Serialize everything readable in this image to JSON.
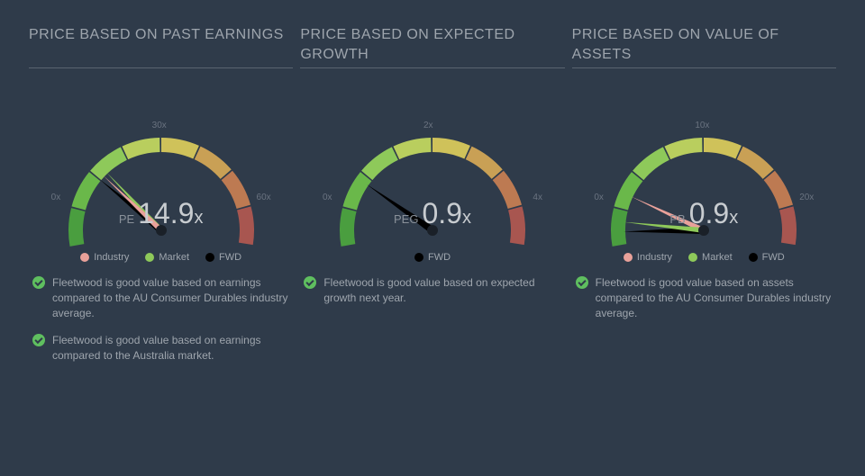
{
  "background_color": "#2f3b4a",
  "panels": [
    {
      "title": "PRICE BASED ON PAST EARNINGS",
      "gauge": {
        "type": "gauge",
        "metric_label": "PE",
        "metric_value": "14.9",
        "metric_suffix": "x",
        "range_min": 0,
        "range_max": 60,
        "tick_min_label": "0x",
        "tick_mid_label": "30x",
        "tick_max_label": "60x",
        "arc_colors": [
          "#4a9e3f",
          "#6ab84a",
          "#8ec95a",
          "#b9ce5e",
          "#cfc25a",
          "#c9a055",
          "#bd7a52",
          "#a85650"
        ],
        "needles": [
          {
            "id": "fwd",
            "value": 14.9,
            "color": "#000000"
          },
          {
            "id": "market",
            "value": 17,
            "color": "#8ec95a"
          },
          {
            "id": "industry",
            "value": 16,
            "color": "#e9a19a"
          }
        ],
        "legend": [
          {
            "label": "Industry",
            "color": "#e9a19a"
          },
          {
            "label": "Market",
            "color": "#8ec95a"
          },
          {
            "label": "FWD",
            "color": "#000000"
          }
        ]
      },
      "checks": [
        "Fleetwood is good value based on earnings compared to the AU Consumer Durables industry average.",
        "Fleetwood is good value based on earnings compared to the Australia market."
      ]
    },
    {
      "title": "PRICE BASED ON EXPECTED GROWTH",
      "gauge": {
        "type": "gauge",
        "metric_label": "PEG",
        "metric_value": "0.9",
        "metric_suffix": "x",
        "range_min": 0,
        "range_max": 4,
        "tick_min_label": "0x",
        "tick_mid_label": "2x",
        "tick_max_label": "4x",
        "arc_colors": [
          "#4a9e3f",
          "#6ab84a",
          "#8ec95a",
          "#b9ce5e",
          "#cfc25a",
          "#c9a055",
          "#bd7a52",
          "#a85650"
        ],
        "needles": [
          {
            "id": "fwd",
            "value": 0.9,
            "color": "#000000"
          }
        ],
        "legend": [
          {
            "label": "FWD",
            "color": "#000000"
          }
        ]
      },
      "checks": [
        "Fleetwood is good value based on expected growth next year."
      ]
    },
    {
      "title": "PRICE BASED ON VALUE OF ASSETS",
      "gauge": {
        "type": "gauge",
        "metric_label": "PB",
        "metric_value": "0.9",
        "metric_suffix": "x",
        "range_min": 0,
        "range_max": 20,
        "tick_min_label": "0x",
        "tick_mid_label": "10x",
        "tick_max_label": "20x",
        "arc_colors": [
          "#4a9e3f",
          "#6ab84a",
          "#8ec95a",
          "#b9ce5e",
          "#cfc25a",
          "#c9a055",
          "#bd7a52",
          "#a85650"
        ],
        "needles": [
          {
            "id": "fwd",
            "value": 0.9,
            "color": "#000000"
          },
          {
            "id": "industry",
            "value": 3.5,
            "color": "#e9a19a"
          },
          {
            "id": "market",
            "value": 1.6,
            "color": "#8ec95a"
          }
        ],
        "legend": [
          {
            "label": "Industry",
            "color": "#e9a19a"
          },
          {
            "label": "Market",
            "color": "#8ec95a"
          },
          {
            "label": "FWD",
            "color": "#000000"
          }
        ]
      },
      "checks": [
        "Fleetwood is good value based on assets compared to the AU Consumer Durables industry average."
      ]
    }
  ]
}
